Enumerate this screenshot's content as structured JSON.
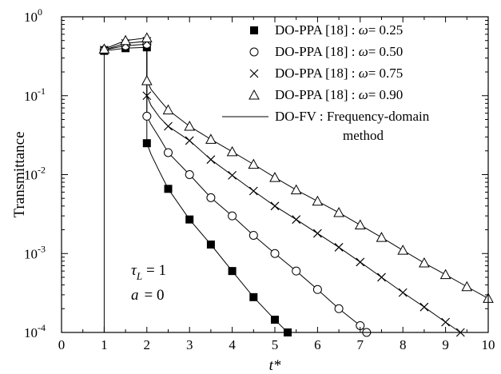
{
  "chart_data": {
    "type": "scatter",
    "xlabel": "t*",
    "ylabel": "Transmittance",
    "xlim": [
      0,
      10
    ],
    "ylim": [
      0.0001,
      1
    ],
    "yscale": "log",
    "xticks": [
      0,
      1,
      2,
      3,
      4,
      5,
      6,
      7,
      8,
      9,
      10
    ],
    "ytick_labels": [
      {
        "base": "10",
        "exp": "0"
      },
      {
        "base": "10",
        "exp": "-1"
      },
      {
        "base": "10",
        "exp": "-2"
      },
      {
        "base": "10",
        "exp": "-3"
      },
      {
        "base": "10",
        "exp": "-4"
      }
    ],
    "legend_position": "top-right",
    "series": [
      {
        "name": "DO-PPA [18] : ω = 0.25",
        "legend_prefix": "DO-PPA [18] : ",
        "legend_symbol": "ω",
        "legend_value": "= 0.25",
        "marker": "filled-square",
        "points": [
          [
            1.0,
            0.37
          ],
          [
            1.5,
            0.4
          ],
          [
            2.0,
            0.41
          ],
          [
            2.0,
            0.025
          ],
          [
            2.5,
            0.0066
          ],
          [
            3.0,
            0.0027
          ],
          [
            3.5,
            0.0013
          ],
          [
            4.0,
            0.0006
          ],
          [
            4.5,
            0.00028
          ],
          [
            5.0,
            0.000145
          ],
          [
            5.3,
            0.0001
          ]
        ]
      },
      {
        "name": "DO-PPA [18] : ω = 0.50",
        "legend_prefix": "DO-PPA [18] : ",
        "legend_symbol": "ω",
        "legend_value": "= 0.50",
        "marker": "open-circle",
        "points": [
          [
            1.0,
            0.38
          ],
          [
            1.5,
            0.43
          ],
          [
            2.0,
            0.45
          ],
          [
            2.0,
            0.055
          ],
          [
            2.5,
            0.019
          ],
          [
            3.0,
            0.01
          ],
          [
            3.5,
            0.0051
          ],
          [
            4.0,
            0.003
          ],
          [
            4.5,
            0.0017
          ],
          [
            5.0,
            0.001
          ],
          [
            5.5,
            0.0006
          ],
          [
            6.0,
            0.00035
          ],
          [
            6.5,
            0.0002
          ],
          [
            7.0,
            0.000122
          ],
          [
            7.15,
            0.0001
          ]
        ]
      },
      {
        "name": "DO-PPA [18] : ω = 0.75",
        "legend_prefix": "DO-PPA [18] : ",
        "legend_symbol": "ω",
        "legend_value": "= 0.75",
        "marker": "cross",
        "points": [
          [
            1.0,
            0.38
          ],
          [
            1.5,
            0.46
          ],
          [
            2.0,
            0.49
          ],
          [
            2.0,
            0.1
          ],
          [
            2.5,
            0.041
          ],
          [
            3.0,
            0.027
          ],
          [
            3.5,
            0.0155
          ],
          [
            4.0,
            0.0098
          ],
          [
            4.5,
            0.0062
          ],
          [
            5.0,
            0.004
          ],
          [
            5.5,
            0.0027
          ],
          [
            6.0,
            0.0018
          ],
          [
            6.5,
            0.0012
          ],
          [
            7.0,
            0.00078
          ],
          [
            7.5,
            0.0005
          ],
          [
            8.0,
            0.00032
          ],
          [
            8.5,
            0.00021
          ],
          [
            9.0,
            0.000135
          ],
          [
            9.35,
            0.0001
          ]
        ]
      },
      {
        "name": "DO-PPA [18] : ω = 0.90",
        "legend_prefix": "DO-PPA [18] : ",
        "legend_symbol": "ω",
        "legend_value": "= 0.90",
        "marker": "open-triangle",
        "points": [
          [
            1.0,
            0.39
          ],
          [
            1.5,
            0.5
          ],
          [
            2.0,
            0.54
          ],
          [
            2.0,
            0.155
          ],
          [
            2.5,
            0.066
          ],
          [
            3.0,
            0.041
          ],
          [
            3.5,
            0.028
          ],
          [
            4.0,
            0.0195
          ],
          [
            4.5,
            0.0135
          ],
          [
            5.0,
            0.0092
          ],
          [
            5.5,
            0.0064
          ],
          [
            6.0,
            0.0046
          ],
          [
            6.5,
            0.0033
          ],
          [
            7.0,
            0.0023
          ],
          [
            7.5,
            0.0016
          ],
          [
            8.0,
            0.0011
          ],
          [
            8.5,
            0.00076
          ],
          [
            9.0,
            0.00054
          ],
          [
            9.5,
            0.00038
          ],
          [
            10.0,
            0.00027
          ]
        ]
      },
      {
        "name": "DO-FV : Frequency-domain method",
        "legend_line1": "DO-FV : Frequency-domain",
        "legend_line2": "method",
        "marker": "line",
        "curves": [
          [
            [
              1.0,
              0.0001
            ],
            [
              1.0,
              0.37
            ],
            [
              1.5,
              0.4
            ],
            [
              2.0,
              0.41
            ],
            [
              2.0,
              0.025
            ],
            [
              2.1,
              0.018
            ],
            [
              2.3,
              0.0108
            ],
            [
              2.5,
              0.0066
            ],
            [
              3.0,
              0.0027
            ],
            [
              3.5,
              0.0013
            ],
            [
              4.0,
              0.0006
            ],
            [
              4.5,
              0.00028
            ],
            [
              5.0,
              0.000145
            ],
            [
              5.3,
              0.0001
            ]
          ],
          [
            [
              1.0,
              0.38
            ],
            [
              1.5,
              0.43
            ],
            [
              2.0,
              0.45
            ],
            [
              2.0,
              0.055
            ],
            [
              2.1,
              0.043
            ],
            [
              2.3,
              0.029
            ],
            [
              2.5,
              0.019
            ],
            [
              3.0,
              0.01
            ],
            [
              3.5,
              0.0051
            ],
            [
              4.0,
              0.003
            ],
            [
              4.5,
              0.0017
            ],
            [
              5.0,
              0.001
            ],
            [
              5.5,
              0.0006
            ],
            [
              6.0,
              0.00035
            ],
            [
              6.5,
              0.0002
            ],
            [
              7.0,
              0.000122
            ],
            [
              7.15,
              0.0001
            ]
          ],
          [
            [
              1.0,
              0.38
            ],
            [
              1.5,
              0.46
            ],
            [
              2.0,
              0.49
            ],
            [
              2.0,
              0.1
            ],
            [
              2.1,
              0.075
            ],
            [
              2.3,
              0.053
            ],
            [
              2.5,
              0.041
            ],
            [
              3.0,
              0.027
            ],
            [
              3.5,
              0.0155
            ],
            [
              4.0,
              0.0098
            ],
            [
              4.5,
              0.0062
            ],
            [
              5.0,
              0.004
            ],
            [
              5.5,
              0.0027
            ],
            [
              6.0,
              0.0018
            ],
            [
              6.5,
              0.0012
            ],
            [
              7.0,
              0.00078
            ],
            [
              7.5,
              0.0005
            ],
            [
              8.0,
              0.00032
            ],
            [
              8.5,
              0.00021
            ],
            [
              9.0,
              0.000135
            ],
            [
              9.35,
              0.0001
            ]
          ],
          [
            [
              1.0,
              0.39
            ],
            [
              1.5,
              0.5
            ],
            [
              2.0,
              0.54
            ],
            [
              2.0,
              0.155
            ],
            [
              2.1,
              0.12
            ],
            [
              2.3,
              0.088
            ],
            [
              2.5,
              0.066
            ],
            [
              3.0,
              0.041
            ],
            [
              3.5,
              0.028
            ],
            [
              4.0,
              0.0195
            ],
            [
              4.5,
              0.0135
            ],
            [
              5.0,
              0.0092
            ],
            [
              5.5,
              0.0064
            ],
            [
              6.0,
              0.0046
            ],
            [
              6.5,
              0.0033
            ],
            [
              7.0,
              0.0023
            ],
            [
              7.5,
              0.0016
            ],
            [
              8.0,
              0.0011
            ],
            [
              8.5,
              0.00076
            ],
            [
              9.0,
              0.00054
            ],
            [
              9.5,
              0.00038
            ],
            [
              10.0,
              0.00027
            ]
          ]
        ]
      }
    ],
    "annotations": {
      "tau_symbol": "τ",
      "tau_sub": "L",
      "tau_value": "= 1",
      "a_symbol": "a",
      "a_value": "= 0"
    }
  }
}
